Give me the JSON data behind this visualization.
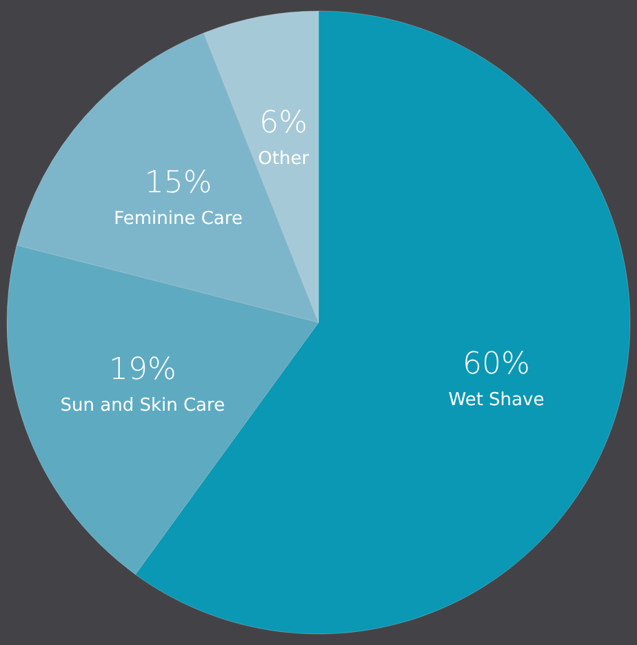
{
  "chart_data": {
    "type": "pie",
    "categories": [
      "Wet Shave",
      "Sun and Skin Care",
      "Feminine Care",
      "Other"
    ],
    "values": [
      60,
      19,
      15,
      6
    ],
    "colors": [
      "#0a98b5",
      "#5eaac1",
      "#7db6ca",
      "#a6c9d7"
    ],
    "value_labels": [
      "60%",
      "19%",
      "15%",
      "6%"
    ]
  }
}
